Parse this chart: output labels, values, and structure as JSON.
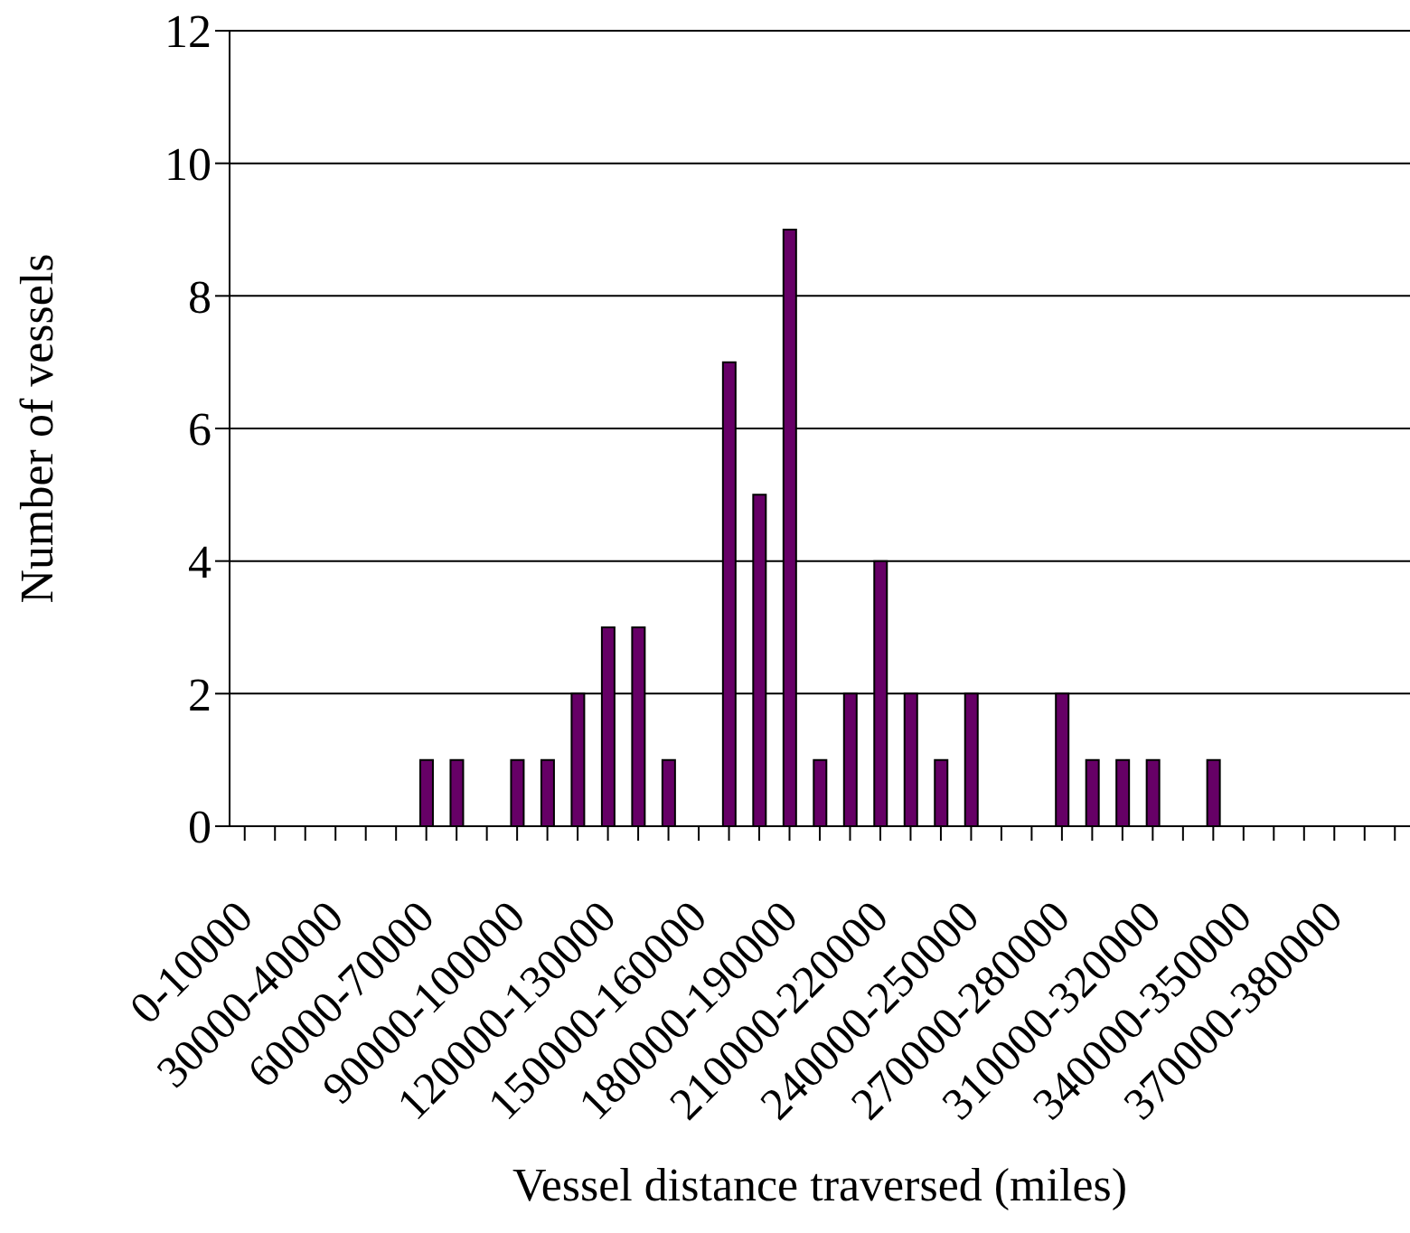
{
  "chart_data": {
    "type": "bar",
    "xlabel": "Vessel distance traversed (miles)",
    "ylabel": "Number of vessels",
    "categories": [
      "0-10000",
      null,
      null,
      "30000-40000",
      null,
      null,
      "60000-70000",
      null,
      null,
      "90000-100000",
      null,
      null,
      "120000-130000",
      null,
      null,
      "150000-160000",
      null,
      null,
      "180000-190000",
      null,
      null,
      "210000-220000",
      null,
      null,
      "240000-250000",
      null,
      null,
      "270000-280000",
      null,
      null,
      "310000-320000",
      null,
      null,
      "340000-350000",
      null,
      null,
      "370000-380000",
      null,
      null
    ],
    "values": [
      0,
      0,
      0,
      0,
      0,
      0,
      1,
      1,
      0,
      1,
      1,
      2,
      3,
      3,
      1,
      0,
      7,
      5,
      9,
      1,
      2,
      4,
      2,
      1,
      2,
      0,
      0,
      2,
      1,
      1,
      1,
      0,
      1,
      0,
      0,
      0,
      0,
      0,
      0
    ],
    "color": "#660066",
    "ylim": [
      0,
      12
    ],
    "yticks": [
      0,
      2,
      4,
      6,
      8,
      10,
      12
    ],
    "grid": "y"
  }
}
